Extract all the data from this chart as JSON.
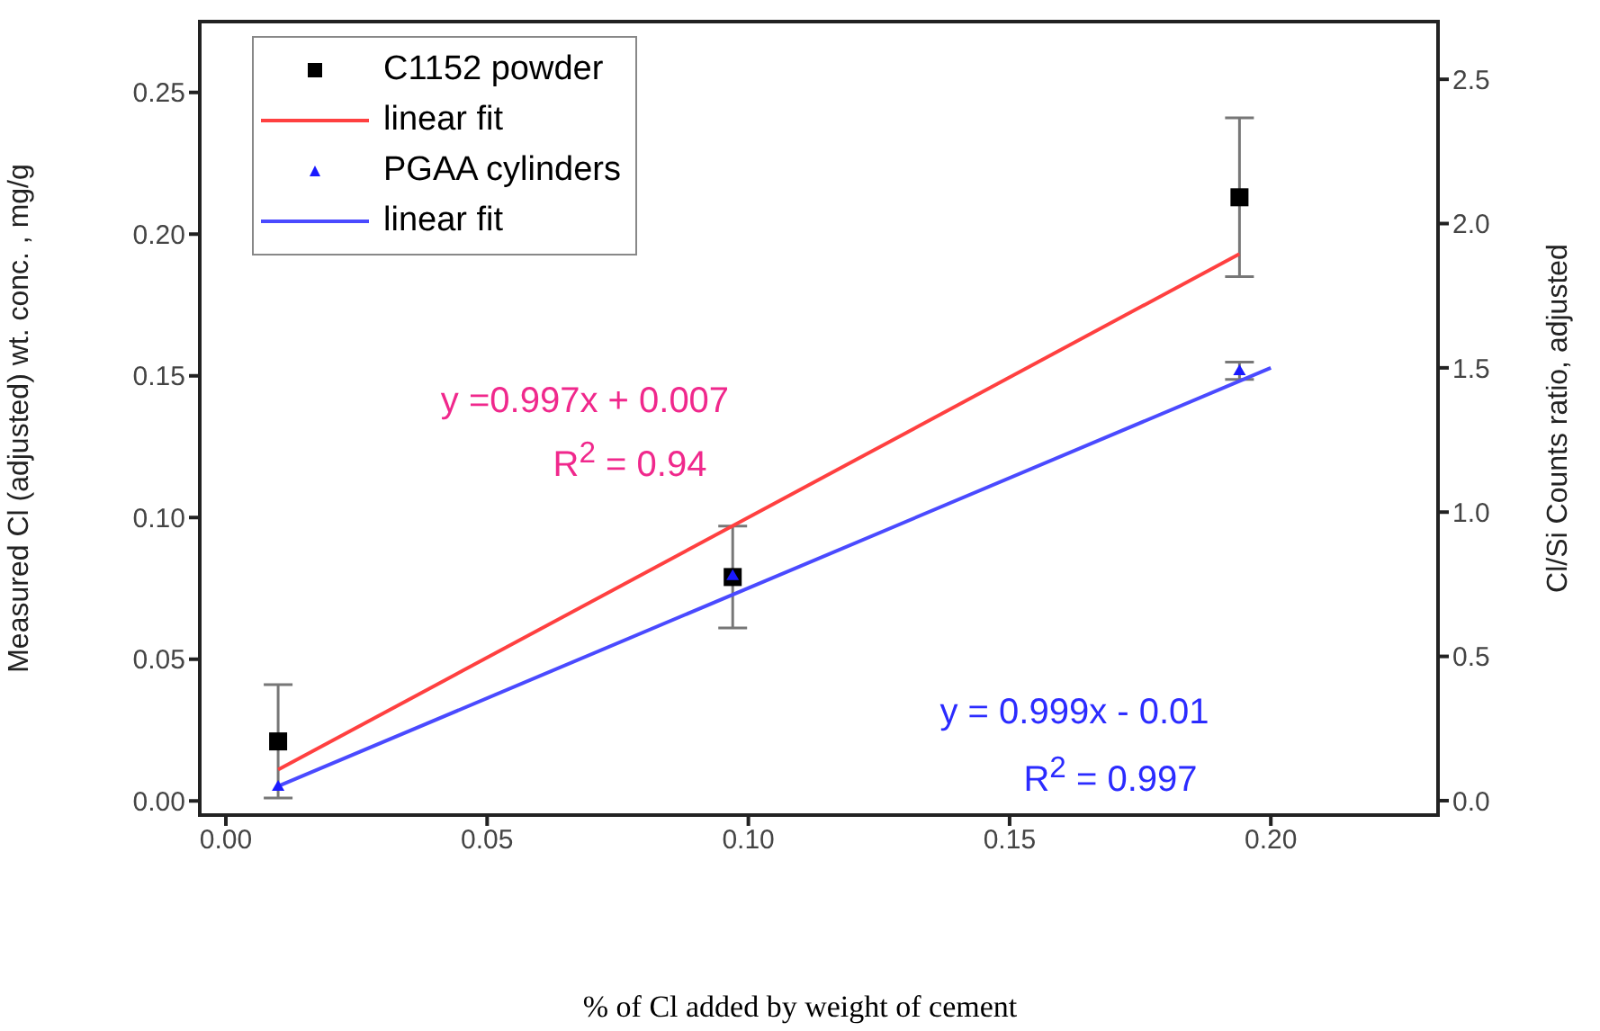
{
  "chart_data": {
    "type": "scatter",
    "xlabel": "% of Cl added by weight of cement",
    "ylabel": "Measured Cl (adjusted) wt. conc. , mg/g",
    "y2label": "Cl/Si Counts ratio, adjusted",
    "series": [
      {
        "name": "C1152 powder",
        "marker": "square",
        "color": "#000000",
        "x": [
          0.01,
          0.097,
          0.194
        ],
        "values": [
          0.021,
          0.079,
          0.213
        ],
        "errors": [
          0.02,
          0.018,
          0.028
        ]
      },
      {
        "name": "linear fit",
        "type": "line",
        "color": "#ff4040",
        "x": [
          0.01,
          0.194
        ],
        "values": [
          0.011,
          0.193
        ]
      },
      {
        "name": "PGAA cylinders",
        "marker": "triangle",
        "axis": "y2",
        "color": "#1a1aff",
        "x": [
          0.01,
          0.097,
          0.194
        ],
        "values": [
          0.05,
          0.78,
          1.49
        ],
        "errors": [
          null,
          null,
          0.03
        ]
      },
      {
        "name": "linear fit",
        "type": "line",
        "axis": "y2",
        "color": "#4a4aff",
        "x": [
          0.01,
          0.2
        ],
        "values": [
          0.05,
          1.5
        ]
      }
    ],
    "xlim": [
      -0.005,
      0.232
    ],
    "xticks": [
      {
        "value": 0,
        "label": "0.00"
      },
      {
        "value": 0.05,
        "label": "0.05"
      },
      {
        "value": 0.1,
        "label": "0.10"
      },
      {
        "value": 0.15,
        "label": "0.15"
      },
      {
        "value": 0.2,
        "label": "0.20"
      }
    ],
    "ylim": [
      -0.005,
      0.275
    ],
    "yticks": [
      {
        "value": 0,
        "label": "0.00"
      },
      {
        "value": 0.05,
        "label": "0.05"
      },
      {
        "value": 0.1,
        "label": "0.10"
      },
      {
        "value": 0.15,
        "label": "0.15"
      },
      {
        "value": 0.2,
        "label": "0.20"
      },
      {
        "value": 0.25,
        "label": "0.25"
      }
    ],
    "y2lim": [
      -0.05,
      2.7
    ],
    "y2ticks": [
      {
        "value": 0,
        "label": "0.0"
      },
      {
        "value": 0.5,
        "label": "0.5"
      },
      {
        "value": 1,
        "label": "1.0"
      },
      {
        "value": 1.5,
        "label": "1.5"
      },
      {
        "value": 2,
        "label": "2.0"
      },
      {
        "value": 2.5,
        "label": "2.5"
      }
    ],
    "annotations": [
      "y =0.997x + 0.007",
      "R$^{2}$ = 0.94",
      "y = 0.999x - 0.01",
      "R$^{2}$ = 0.997"
    ],
    "legend": "top left",
    "grid": false
  }
}
